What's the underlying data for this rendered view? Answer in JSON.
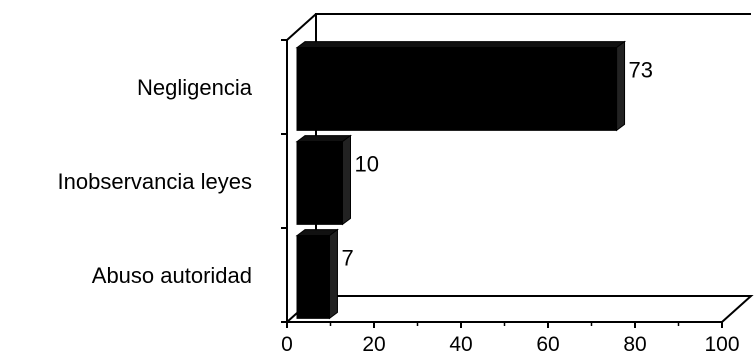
{
  "chart_data": {
    "type": "bar",
    "orientation": "horizontal",
    "style": "3d",
    "categories": [
      "Negligencia",
      "Inobservancia leyes",
      "Abuso autoridad"
    ],
    "values": [
      73,
      10,
      7
    ],
    "data_labels": [
      "73",
      "10",
      "7"
    ],
    "xlim": [
      0,
      100
    ],
    "x_ticks": [
      0,
      20,
      40,
      60,
      80,
      100
    ],
    "x_tick_labels": [
      "0",
      "20",
      "40",
      "60",
      "80",
      "100"
    ],
    "title": "",
    "xlabel": "",
    "ylabel": "",
    "grid": false,
    "legend": "none",
    "bar_color": "#000000"
  }
}
